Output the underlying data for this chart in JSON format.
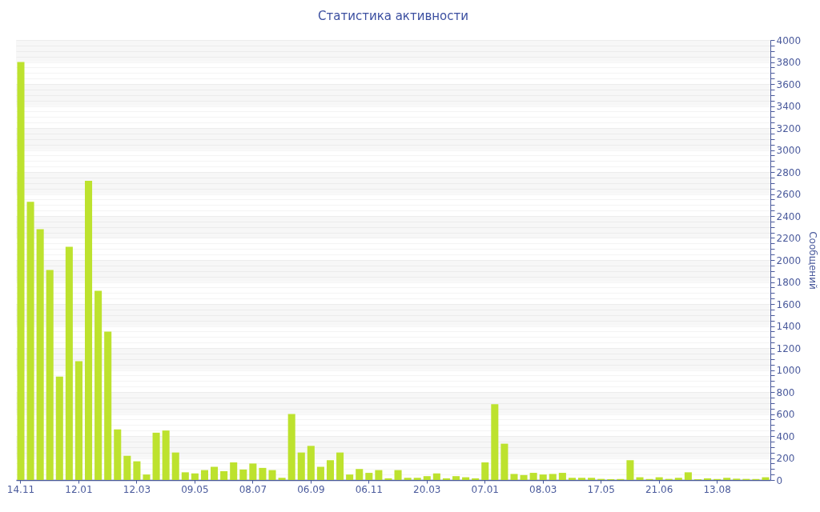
{
  "chart_data": {
    "type": "bar",
    "title": "Статистика активности",
    "ylabel": "Сообщений",
    "categories": [
      "14.11",
      null,
      null,
      null,
      null,
      null,
      "12.01",
      null,
      null,
      null,
      null,
      null,
      "12.03",
      null,
      null,
      null,
      null,
      null,
      "09.05",
      null,
      null,
      null,
      null,
      null,
      "08.07",
      null,
      null,
      null,
      null,
      null,
      "06.09",
      null,
      null,
      null,
      null,
      null,
      "06.11",
      null,
      null,
      null,
      null,
      null,
      "20.03",
      null,
      null,
      null,
      null,
      null,
      "07.01",
      null,
      null,
      null,
      null,
      null,
      "08.03",
      null,
      null,
      null,
      null,
      null,
      "17.05",
      null,
      null,
      null,
      null,
      null,
      "21.06",
      null,
      null,
      null,
      null,
      null,
      "13.08",
      null,
      null,
      null,
      null,
      null
    ],
    "values": [
      3800,
      2530,
      2280,
      1910,
      940,
      2120,
      1080,
      2720,
      1720,
      1350,
      460,
      220,
      170,
      50,
      430,
      450,
      250,
      70,
      60,
      90,
      120,
      80,
      160,
      95,
      150,
      110,
      90,
      20,
      600,
      250,
      310,
      120,
      180,
      250,
      50,
      100,
      65,
      90,
      15,
      90,
      20,
      20,
      35,
      60,
      15,
      35,
      25,
      15,
      160,
      690,
      330,
      55,
      45,
      65,
      50,
      55,
      65,
      20,
      20,
      20,
      10,
      8,
      9,
      180,
      25,
      9,
      25,
      10,
      20,
      70,
      7,
      15,
      9,
      20,
      12,
      10,
      9,
      25
    ],
    "color": "#bde22e",
    "ylim": [
      0,
      4000
    ],
    "yticks": [
      0,
      {
        "value": 50,
        "label": null
      },
      {
        "value": 100,
        "label": null
      },
      {
        "value": 150,
        "label": null
      },
      200,
      {
        "value": 250,
        "label": null
      },
      {
        "value": 300,
        "label": null
      },
      {
        "value": 350,
        "label": null
      },
      400,
      {
        "value": 450,
        "label": null
      },
      {
        "value": 500,
        "label": null
      },
      {
        "value": 550,
        "label": null
      },
      600,
      {
        "value": 650,
        "label": null
      },
      {
        "value": 700,
        "label": null
      },
      {
        "value": 750,
        "label": null
      },
      800,
      {
        "value": 850,
        "label": null
      },
      {
        "value": 900,
        "label": null
      },
      {
        "value": 950,
        "label": null
      },
      1000,
      {
        "value": 1050,
        "label": null
      },
      {
        "value": 1100,
        "label": null
      },
      {
        "value": 1150,
        "label": null
      },
      1200,
      {
        "value": 1250,
        "label": null
      },
      {
        "value": 1300,
        "label": null
      },
      {
        "value": 1350,
        "label": null
      },
      1400,
      {
        "value": 1450,
        "label": null
      },
      {
        "value": 1500,
        "label": null
      },
      {
        "value": 1550,
        "label": null
      },
      1600,
      {
        "value": 1650,
        "label": null
      },
      {
        "value": 1700,
        "label": null
      },
      {
        "value": 1750,
        "label": null
      },
      1800,
      {
        "value": 1850,
        "label": null
      },
      {
        "value": 1900,
        "label": null
      },
      {
        "value": 1950,
        "label": null
      },
      2000,
      {
        "value": 2050,
        "label": null
      },
      {
        "value": 2100,
        "label": null
      },
      {
        "value": 2150,
        "label": null
      },
      2200,
      {
        "value": 2250,
        "label": null
      },
      {
        "value": 2300,
        "label": null
      },
      {
        "value": 2350,
        "label": null
      },
      2400,
      {
        "value": 2450,
        "label": null
      },
      {
        "value": 2500,
        "label": null
      },
      {
        "value": 2550,
        "label": null
      },
      2600,
      {
        "value": 2650,
        "label": null
      },
      {
        "value": 2700,
        "label": null
      },
      {
        "value": 2750,
        "label": null
      },
      2800,
      {
        "value": 2850,
        "label": null
      },
      {
        "value": 2900,
        "label": null
      },
      {
        "value": 2950,
        "label": null
      },
      3000,
      {
        "value": 3050,
        "label": null
      },
      {
        "value": 3100,
        "label": null
      },
      {
        "value": 3150,
        "label": null
      },
      3200,
      {
        "value": 3250,
        "label": null
      },
      {
        "value": 3300,
        "label": null
      },
      {
        "value": 3350,
        "label": null
      },
      3400,
      {
        "value": 3450,
        "label": null
      },
      {
        "value": 3500,
        "label": null
      },
      {
        "value": 3550,
        "label": null
      },
      3600,
      {
        "value": 3650,
        "label": null
      },
      {
        "value": 3700,
        "label": null
      },
      {
        "value": 3750,
        "label": null
      },
      3800,
      {
        "value": 3850,
        "label": null
      },
      {
        "value": 3900,
        "label": null
      },
      {
        "value": 3950,
        "label": null
      },
      4000
    ],
    "grid": true
  }
}
